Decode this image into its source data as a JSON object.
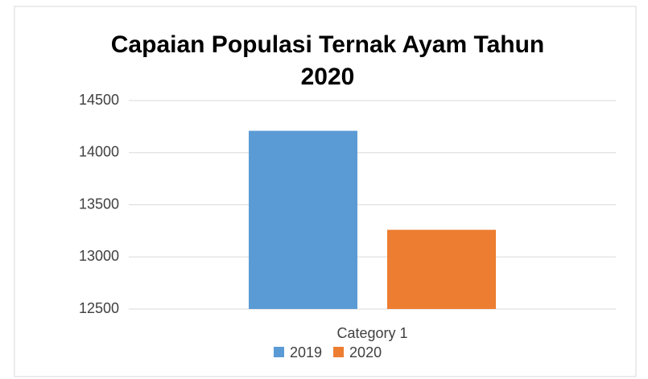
{
  "chart_data": {
    "type": "bar",
    "title": "Capaian Populasi Ternak Ayam Tahun 2020",
    "categories": [
      "Category 1"
    ],
    "series": [
      {
        "name": "2019",
        "color": "#5b9bd5",
        "values": [
          14210
        ]
      },
      {
        "name": "2020",
        "color": "#ed7d31",
        "values": [
          13260
        ]
      }
    ],
    "ylim": [
      12500,
      14500
    ],
    "yticks": [
      12500,
      13000,
      13500,
      14000,
      14500
    ],
    "grid": true,
    "legend": "bottom"
  }
}
